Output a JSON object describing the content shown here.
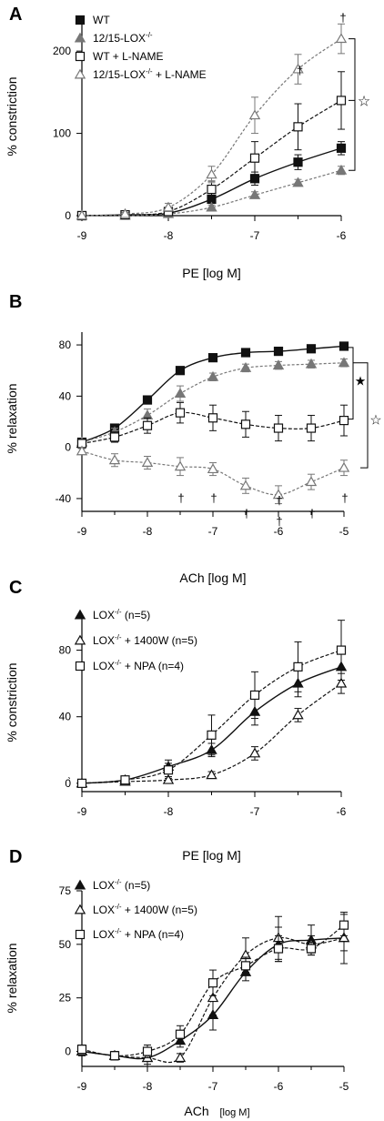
{
  "chart_data": [
    {
      "panel_label": "A",
      "type": "line",
      "xlabel": "PE [log M]",
      "ylabel": "% constriction",
      "xlim": [
        -9,
        -6
      ],
      "ylim": [
        0,
        240
      ],
      "x_ticks": [
        "-9",
        "-8",
        "-7",
        "-6"
      ],
      "y_ticks": [
        "0",
        "100",
        "200"
      ],
      "legend_position": "top-left",
      "annotations": [
        "†",
        "†",
        "☆"
      ],
      "series": [
        {
          "name": "WT",
          "marker": "square-filled",
          "x": [
            -9,
            -8.5,
            -8,
            -7.5,
            -7,
            -6.5,
            -6
          ],
          "y": [
            0,
            1,
            3,
            20,
            45,
            65,
            82
          ],
          "err": [
            0,
            1,
            2,
            4,
            8,
            9,
            8
          ]
        },
        {
          "name": "12/15-LOX",
          "marker": "triangle-filled-gray",
          "x": [
            -9,
            -8.5,
            -8,
            -7.5,
            -7,
            -6.5,
            -6
          ],
          "y": [
            0,
            0,
            2,
            10,
            25,
            40,
            55
          ],
          "err": [
            0,
            1,
            1,
            3,
            4,
            4,
            5
          ]
        },
        {
          "name": "WT + L-NAME",
          "marker": "square-open",
          "x": [
            -9,
            -8.5,
            -8,
            -7.5,
            -7,
            -6.5,
            -6
          ],
          "y": [
            0,
            1,
            5,
            32,
            70,
            108,
            140
          ],
          "err": [
            0,
            2,
            4,
            10,
            20,
            28,
            35
          ]
        },
        {
          "name": "12/15-LOX + L-NAME",
          "marker": "triangle-open-gray",
          "x": [
            -9,
            -8.5,
            -8,
            -7.5,
            -7,
            -6.5,
            -6
          ],
          "y": [
            0,
            2,
            10,
            50,
            122,
            178,
            215
          ],
          "err": [
            0,
            2,
            5,
            10,
            22,
            18,
            18
          ]
        }
      ],
      "legend_labels": [
        {
          "main": "WT",
          "sup": ""
        },
        {
          "main": "12/15-LOX",
          "sup": "-/-"
        },
        {
          "main": "WT + L-NAME",
          "sup": ""
        },
        {
          "main": "12/15-LOX",
          "sup": "-/-",
          "tail": " + L-NAME"
        }
      ]
    },
    {
      "panel_label": "B",
      "type": "line",
      "xlabel": "ACh [log M]",
      "ylabel": "% relaxation",
      "xlim": [
        -9,
        -5
      ],
      "ylim": [
        -50,
        90
      ],
      "x_ticks": [
        "-9",
        "-8",
        "-7",
        "-6",
        "-5"
      ],
      "y_ticks": [
        "-40",
        "0",
        "40",
        "80"
      ],
      "annotations": [
        "†",
        "†",
        "†",
        "†",
        "†",
        "†",
        "†",
        "★",
        "☆"
      ],
      "series": [
        {
          "name": "WT",
          "marker": "square-filled",
          "x": [
            -9,
            -8.5,
            -8,
            -7.5,
            -7,
            -6.5,
            -6,
            -5.5,
            -5
          ],
          "y": [
            4,
            15,
            37,
            60,
            70,
            74,
            75,
            77,
            79
          ],
          "err": [
            2,
            2,
            3,
            2,
            2,
            2,
            2,
            2,
            2
          ]
        },
        {
          "name": "12/15-LOX",
          "marker": "triangle-filled-gray",
          "x": [
            -9,
            -8.5,
            -8,
            -7.5,
            -7,
            -6.5,
            -6,
            -5.5,
            -5
          ],
          "y": [
            4,
            12,
            25,
            42,
            55,
            62,
            64,
            65,
            66
          ],
          "err": [
            2,
            3,
            5,
            6,
            3,
            3,
            3,
            3,
            3
          ]
        },
        {
          "name": "WT + L-NAME",
          "marker": "square-open",
          "x": [
            -9,
            -8.5,
            -8,
            -7.5,
            -7,
            -6.5,
            -6,
            -5.5,
            -5
          ],
          "y": [
            3,
            8,
            17,
            27,
            23,
            18,
            15,
            15,
            21
          ],
          "err": [
            2,
            4,
            6,
            8,
            10,
            10,
            10,
            10,
            12
          ]
        },
        {
          "name": "12/15-LOX + L-NAME",
          "marker": "triangle-open-gray",
          "x": [
            -9,
            -8.5,
            -8,
            -7.5,
            -7,
            -6.5,
            -6,
            -5.5,
            -5
          ],
          "y": [
            -3,
            -10,
            -12,
            -15,
            -17,
            -30,
            -37,
            -27,
            -16
          ],
          "err": [
            2,
            5,
            5,
            7,
            5,
            6,
            7,
            6,
            6
          ]
        }
      ]
    },
    {
      "panel_label": "C",
      "type": "line",
      "xlabel": "PE [log M]",
      "ylabel": "% constriction",
      "xlim": [
        -9,
        -6
      ],
      "ylim": [
        -5,
        100
      ],
      "x_ticks": [
        "-9",
        "-8",
        "-7",
        "-6"
      ],
      "y_ticks": [
        "0",
        "40",
        "80"
      ],
      "zero_tick_label": "0̀",
      "legend_position": "top-left",
      "series": [
        {
          "name": "LOX (n=5)",
          "marker": "triangle-filled",
          "x": [
            -9,
            -8.5,
            -8,
            -7.5,
            -7,
            -6.5,
            -6
          ],
          "y": [
            0,
            2,
            10,
            20,
            43,
            60,
            70
          ],
          "err": [
            0,
            2,
            4,
            4,
            8,
            8,
            8
          ]
        },
        {
          "name": "LOX + 1400W (n=5)",
          "marker": "triangle-open",
          "x": [
            -9,
            -8.5,
            -8,
            -7.5,
            -7,
            -6.5,
            -6
          ],
          "y": [
            0,
            1,
            2,
            5,
            18,
            41,
            60
          ],
          "err": [
            0,
            1,
            1,
            2,
            4,
            4,
            6
          ]
        },
        {
          "name": "LOX + NPA (n=4)",
          "marker": "square-open",
          "x": [
            -9,
            -8.5,
            -8,
            -7.5,
            -7,
            -6.5,
            -6
          ],
          "y": [
            0,
            2,
            8,
            29,
            53,
            70,
            80
          ],
          "err": [
            0,
            2,
            4,
            12,
            14,
            15,
            18
          ]
        }
      ],
      "legend_labels": [
        {
          "main": "LOX",
          "sup": "-/-",
          "tail": " (n=5)"
        },
        {
          "main": "LOX",
          "sup": "-/-",
          "tail": " + 1400W (n=5)"
        },
        {
          "main": "LOX",
          "sup": "-/-",
          "tail": " + NPA (n=4)"
        }
      ]
    },
    {
      "panel_label": "D",
      "type": "line",
      "xlabel": "ACh",
      "xlabel_unit": "[log M]",
      "ylabel": "% relaxation",
      "xlim": [
        -9,
        -5
      ],
      "ylim": [
        -7,
        75
      ],
      "x_ticks": [
        "-9",
        "-8",
        "-7",
        "-6",
        "-5"
      ],
      "y_ticks": [
        "0",
        "25",
        "50",
        "75"
      ],
      "legend_position": "top-left",
      "series": [
        {
          "name": "LOX (n=5)",
          "marker": "triangle-filled",
          "x": [
            -9,
            -8.5,
            -8,
            -7.5,
            -7,
            -6.5,
            -6,
            -5.5,
            -5
          ],
          "y": [
            0,
            -2,
            -3,
            5,
            17,
            37,
            50,
            52,
            53
          ],
          "err": [
            2,
            2,
            4,
            3,
            7,
            4,
            8,
            7,
            12
          ]
        },
        {
          "name": "LOX + 1400W (n=5)",
          "marker": "triangle-open",
          "x": [
            -9,
            -8.5,
            -8,
            -7.5,
            -7,
            -6.5,
            -6,
            -5.5,
            -5
          ],
          "y": [
            0,
            -2,
            -3,
            -3,
            25,
            45,
            53,
            50,
            53
          ],
          "err": [
            2,
            2,
            3,
            2,
            8,
            8,
            10,
            4,
            6
          ]
        },
        {
          "name": "LOX + NPA (n=4)",
          "marker": "square-open",
          "x": [
            -9,
            -8.5,
            -8,
            -7.5,
            -7,
            -6.5,
            -6,
            -5.5,
            -5
          ],
          "y": [
            1,
            -2,
            0,
            8,
            32,
            40,
            48,
            48,
            59
          ],
          "err": [
            2,
            2,
            3,
            4,
            6,
            4,
            6,
            3,
            5
          ]
        }
      ],
      "legend_labels": [
        {
          "main": "LOX",
          "sup": "-/-",
          "tail": " (n=5)"
        },
        {
          "main": "LOX",
          "sup": "-/-",
          "tail": " + 1400W (n=5)"
        },
        {
          "main": "LOX",
          "sup": "-/-",
          "tail": " + NPA (n=4)"
        }
      ]
    }
  ]
}
